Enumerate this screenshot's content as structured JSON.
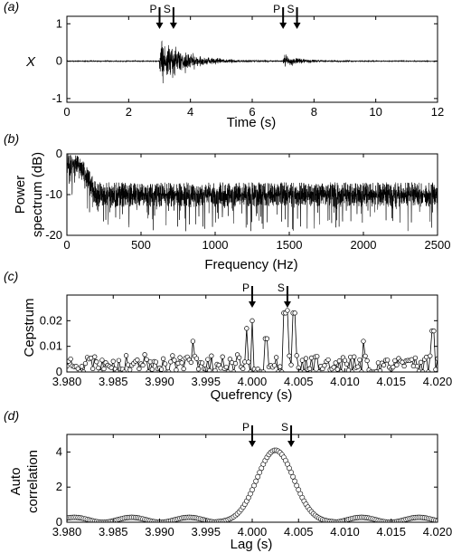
{
  "chart_data": [
    {
      "id": "a",
      "panel_label": "(a)",
      "type": "line",
      "xlabel": "Time (s)",
      "ylabel": "X",
      "xlim": [
        0,
        12
      ],
      "ylim": [
        -1.1,
        1.2
      ],
      "xticks": [
        0,
        2,
        4,
        6,
        8,
        10,
        12
      ],
      "yticks": [
        -1,
        0,
        1
      ],
      "series": [
        {
          "x_range": [
            0,
            12
          ],
          "noise_level": 0.02,
          "events": [
            {
              "start": 3.0,
              "peak": 1.0,
              "decay_s": 0.8
            },
            {
              "start": 7.0,
              "peak": 0.25,
              "decay_s": 0.5
            }
          ]
        }
      ],
      "annotations": [
        {
          "label": "P",
          "x": 3.0
        },
        {
          "label": "S",
          "x": 3.45
        },
        {
          "label": "P",
          "x": 7.0
        },
        {
          "label": "S",
          "x": 7.45
        }
      ]
    },
    {
      "id": "b",
      "panel_label": "(b)",
      "type": "line",
      "xlabel": "Frequency (Hz)",
      "ylabel": [
        "Power",
        "spectrum (dB)"
      ],
      "xlim": [
        0,
        2500
      ],
      "ylim": [
        -20,
        0
      ],
      "xticks": [
        0,
        500,
        1000,
        1500,
        2000,
        2500
      ],
      "yticks": [
        -20,
        -10,
        0
      ],
      "series": [
        {
          "x_range": [
            0,
            2500
          ],
          "plateau_db": -2.5,
          "rolloff_hz": [
            70,
            200
          ],
          "floor_db": -10,
          "floor_spread_db": [
            -7,
            -16
          ]
        }
      ]
    },
    {
      "id": "c",
      "panel_label": "(c)",
      "type": "line",
      "xlabel": "Quefrency (s)",
      "ylabel": "Cepstrum",
      "xlim": [
        3.98,
        4.02
      ],
      "ylim": [
        0,
        0.03
      ],
      "xticks": [
        "3.980",
        "3.985",
        "3.990",
        "3.995",
        "4.000",
        "4.005",
        "4.010",
        "4.015",
        "4.020"
      ],
      "yticks": [
        "0",
        "0.01",
        "0.02"
      ],
      "series": [
        {
          "marker": "circle",
          "x_step": 0.0002,
          "baseline": 0.004,
          "peaks": [
            [
              4.0,
              0.02
            ],
            [
              3.9995,
              0.017
            ],
            [
              4.0035,
              0.023
            ],
            [
              4.0038,
              0.024
            ],
            [
              4.0045,
              0.023
            ],
            [
              4.0015,
              0.013
            ],
            [
              3.9935,
              0.012
            ],
            [
              4.012,
              0.012
            ],
            [
              4.0195,
              0.016
            ]
          ]
        }
      ],
      "annotations": [
        {
          "label": "P",
          "x": 4.0
        },
        {
          "label": "S",
          "x": 4.0038
        }
      ]
    },
    {
      "id": "d",
      "panel_label": "(d)",
      "type": "line",
      "xlabel": "Lag (s)",
      "ylabel": [
        "Auto",
        "correlation"
      ],
      "xlim": [
        3.98,
        4.02
      ],
      "ylim": [
        0,
        5
      ],
      "xticks": [
        "3.980",
        "3.985",
        "3.990",
        "3.995",
        "4.000",
        "4.005",
        "4.010",
        "4.015",
        "4.020"
      ],
      "yticks": [
        0,
        2,
        4
      ],
      "series": [
        {
          "marker": "circle",
          "x_step": 0.0002,
          "center": 4.0025,
          "peak": 4.1,
          "width_s": 0.0028,
          "side_lobe": 0.28,
          "side_period_s": 0.0062
        }
      ],
      "annotations": [
        {
          "label": "P",
          "x": 4.0
        },
        {
          "label": "S",
          "x": 4.0042
        }
      ]
    }
  ]
}
